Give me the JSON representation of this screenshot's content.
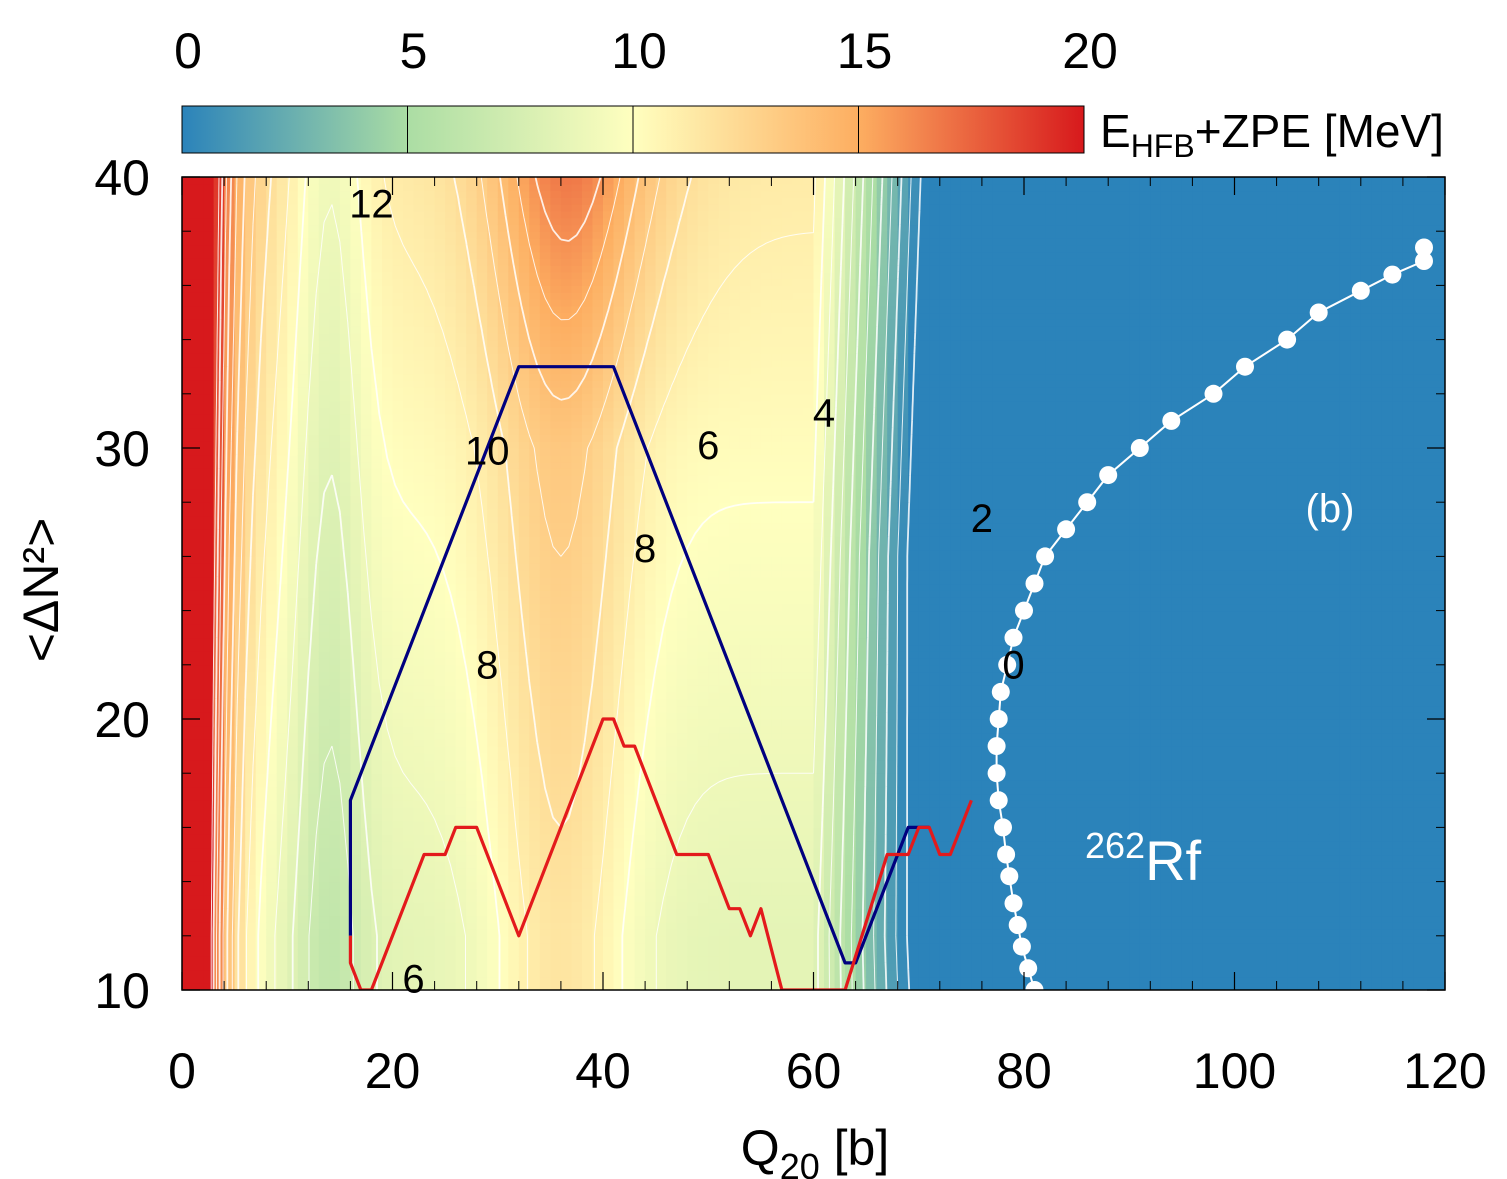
{
  "chart_data": {
    "type": "heatmap",
    "title": "",
    "xlabel_main": "Q",
    "xlabel_sub": "20",
    "xlabel_unit": " [b]",
    "ylabel": "<ΔN²>",
    "xlim": [
      0,
      120
    ],
    "ylim": [
      10,
      40
    ],
    "x_ticks": [
      "0",
      "20",
      "40",
      "60",
      "80",
      "100",
      "120"
    ],
    "y_ticks": [
      "10",
      "20",
      "30",
      "40"
    ],
    "colorbar": {
      "range": [
        0,
        20
      ],
      "ticks": [
        "0",
        "5",
        "10",
        "15",
        "20"
      ],
      "label_E": "E",
      "label_sub": "HFB",
      "label_rest": "+ZPE [MeV]",
      "colors": [
        "#2b83ba",
        "#abdda4",
        "#ffffbf",
        "#fdae61",
        "#d7191c"
      ]
    },
    "contour_labels": [
      {
        "text": "12",
        "q20": 18,
        "dn2": 38.5
      },
      {
        "text": "10",
        "q20": 29,
        "dn2": 29.4
      },
      {
        "text": "8",
        "q20": 44,
        "dn2": 25.8
      },
      {
        "text": "8",
        "q20": 29,
        "dn2": 21.5
      },
      {
        "text": "6",
        "q20": 50,
        "dn2": 29.6
      },
      {
        "text": "6",
        "q20": 22,
        "dn2": 9.9
      },
      {
        "text": "4",
        "q20": 61,
        "dn2": 30.8
      },
      {
        "text": "2",
        "q20": 76,
        "dn2": 26.9
      },
      {
        "text": "0",
        "q20": 79,
        "dn2": 21.5
      }
    ],
    "annotations": {
      "panel": "(b)",
      "nucleus_mass": "262",
      "nucleus_symbol": "Rf"
    },
    "series": [
      {
        "color": "#00007f",
        "points": [
          [
            16,
            12
          ],
          [
            16,
            17
          ],
          [
            32,
            33
          ],
          [
            36,
            33
          ],
          [
            41,
            33
          ],
          [
            63,
            11
          ],
          [
            64,
            11
          ],
          [
            68,
            15
          ],
          [
            69,
            16
          ],
          [
            71,
            16
          ]
        ]
      },
      {
        "color": "#e31a1c",
        "points": [
          [
            16,
            12
          ],
          [
            16,
            11
          ],
          [
            17,
            10
          ],
          [
            18,
            10
          ],
          [
            23,
            15
          ],
          [
            25,
            15
          ],
          [
            26,
            16
          ],
          [
            28,
            16
          ],
          [
            32,
            12
          ],
          [
            40,
            20
          ],
          [
            41,
            20
          ],
          [
            42,
            19
          ],
          [
            43,
            19
          ],
          [
            47,
            15
          ],
          [
            50,
            15
          ],
          [
            51,
            14
          ],
          [
            52,
            13
          ],
          [
            53,
            13
          ],
          [
            54,
            12
          ],
          [
            55,
            13
          ],
          [
            57,
            10
          ],
          [
            62,
            10
          ],
          [
            63,
            10
          ],
          [
            67,
            15
          ],
          [
            69,
            15
          ],
          [
            70,
            16
          ],
          [
            71,
            16
          ],
          [
            72,
            15
          ],
          [
            73,
            15
          ],
          [
            75,
            17
          ]
        ]
      },
      {
        "color": "#ffffff",
        "marker": "circle",
        "points": [
          [
            81,
            10
          ],
          [
            80.4,
            10.8
          ],
          [
            79.8,
            11.6
          ],
          [
            79.4,
            12.4
          ],
          [
            79,
            13.2
          ],
          [
            78.6,
            14.2
          ],
          [
            78.3,
            15
          ],
          [
            78,
            16
          ],
          [
            77.6,
            17
          ],
          [
            77.4,
            18
          ],
          [
            77.4,
            19
          ],
          [
            77.6,
            20
          ],
          [
            77.8,
            21
          ],
          [
            78.4,
            22
          ],
          [
            79,
            23
          ],
          [
            80,
            24
          ],
          [
            81,
            25
          ],
          [
            82,
            26
          ],
          [
            84,
            27
          ],
          [
            86,
            28
          ],
          [
            88,
            29
          ],
          [
            91,
            30
          ],
          [
            94,
            31
          ],
          [
            98,
            32
          ],
          [
            101,
            33
          ],
          [
            105,
            34
          ],
          [
            108,
            35
          ],
          [
            112,
            35.8
          ],
          [
            115,
            36.4
          ],
          [
            118,
            36.9
          ],
          [
            118,
            37.4
          ]
        ]
      }
    ]
  }
}
